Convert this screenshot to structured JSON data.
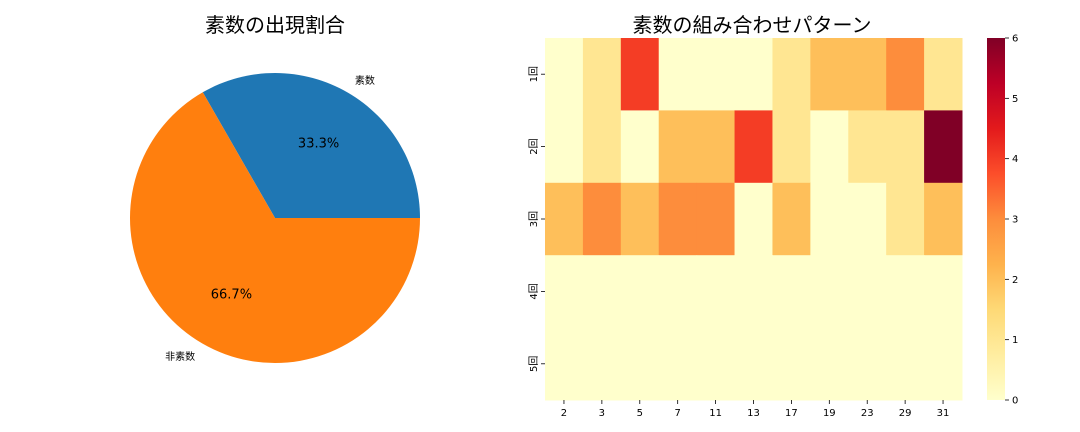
{
  "chart_data": [
    {
      "type": "pie",
      "title": "素数の出現割合",
      "labels": [
        "素数",
        "非素数"
      ],
      "values": [
        33.3,
        66.7
      ],
      "value_labels": [
        "33.3%",
        "66.7%"
      ],
      "colors": [
        "#1f77b4",
        "#ff7f0e"
      ],
      "startangle": 0
    },
    {
      "type": "heatmap",
      "title": "素数の組み合わせパターン",
      "x": [
        "2",
        "3",
        "5",
        "7",
        "11",
        "13",
        "17",
        "19",
        "23",
        "29",
        "31"
      ],
      "y": [
        "1回",
        "2回",
        "3回",
        "4回",
        "5回"
      ],
      "values": [
        [
          0,
          1,
          4,
          0,
          0,
          0,
          1,
          2,
          2,
          3,
          1
        ],
        [
          0,
          1,
          0,
          2,
          2,
          4,
          1,
          0,
          1,
          1,
          6
        ],
        [
          2,
          3,
          2,
          3,
          3,
          0,
          2,
          0,
          0,
          1,
          2
        ],
        [
          0,
          0,
          0,
          0,
          0,
          0,
          0,
          0,
          0,
          0,
          0
        ],
        [
          0,
          0,
          0,
          0,
          0,
          0,
          0,
          0,
          0,
          0,
          0
        ]
      ],
      "colorbar": {
        "min": 0,
        "max": 6,
        "ticks": [
          "0",
          "1",
          "2",
          "3",
          "4",
          "5",
          "6"
        ],
        "colormap": "YlOrRd"
      }
    }
  ]
}
